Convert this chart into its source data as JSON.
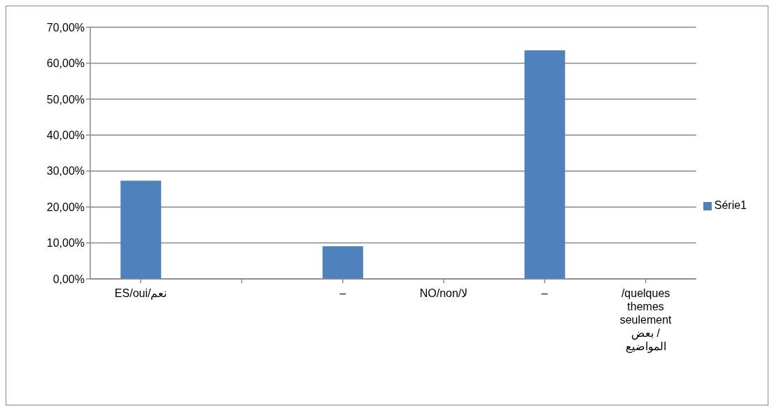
{
  "chart_data": {
    "type": "bar",
    "categories": [
      "ES/oui/نعم",
      null,
      "–",
      "NO/non/لا",
      "–",
      "/quelques themes seulement بعض / المواضيع"
    ],
    "series": [
      {
        "name": "Série1",
        "color": "#4f81bd",
        "values": [
          27.3,
          null,
          9.1,
          null,
          63.6,
          null
        ]
      }
    ],
    "ylim": [
      0,
      70
    ],
    "yticks": [
      {
        "value": 0,
        "label": "0,00%"
      },
      {
        "value": 10,
        "label": "10,00%"
      },
      {
        "value": 20,
        "label": "20,00%"
      },
      {
        "value": 30,
        "label": "30,00%"
      },
      {
        "value": 40,
        "label": "40,00%"
      },
      {
        "value": 50,
        "label": "50,00%"
      },
      {
        "value": 60,
        "label": "60,00%"
      },
      {
        "value": 70,
        "label": "70,00%"
      }
    ],
    "grid": "y",
    "legend": "right"
  }
}
